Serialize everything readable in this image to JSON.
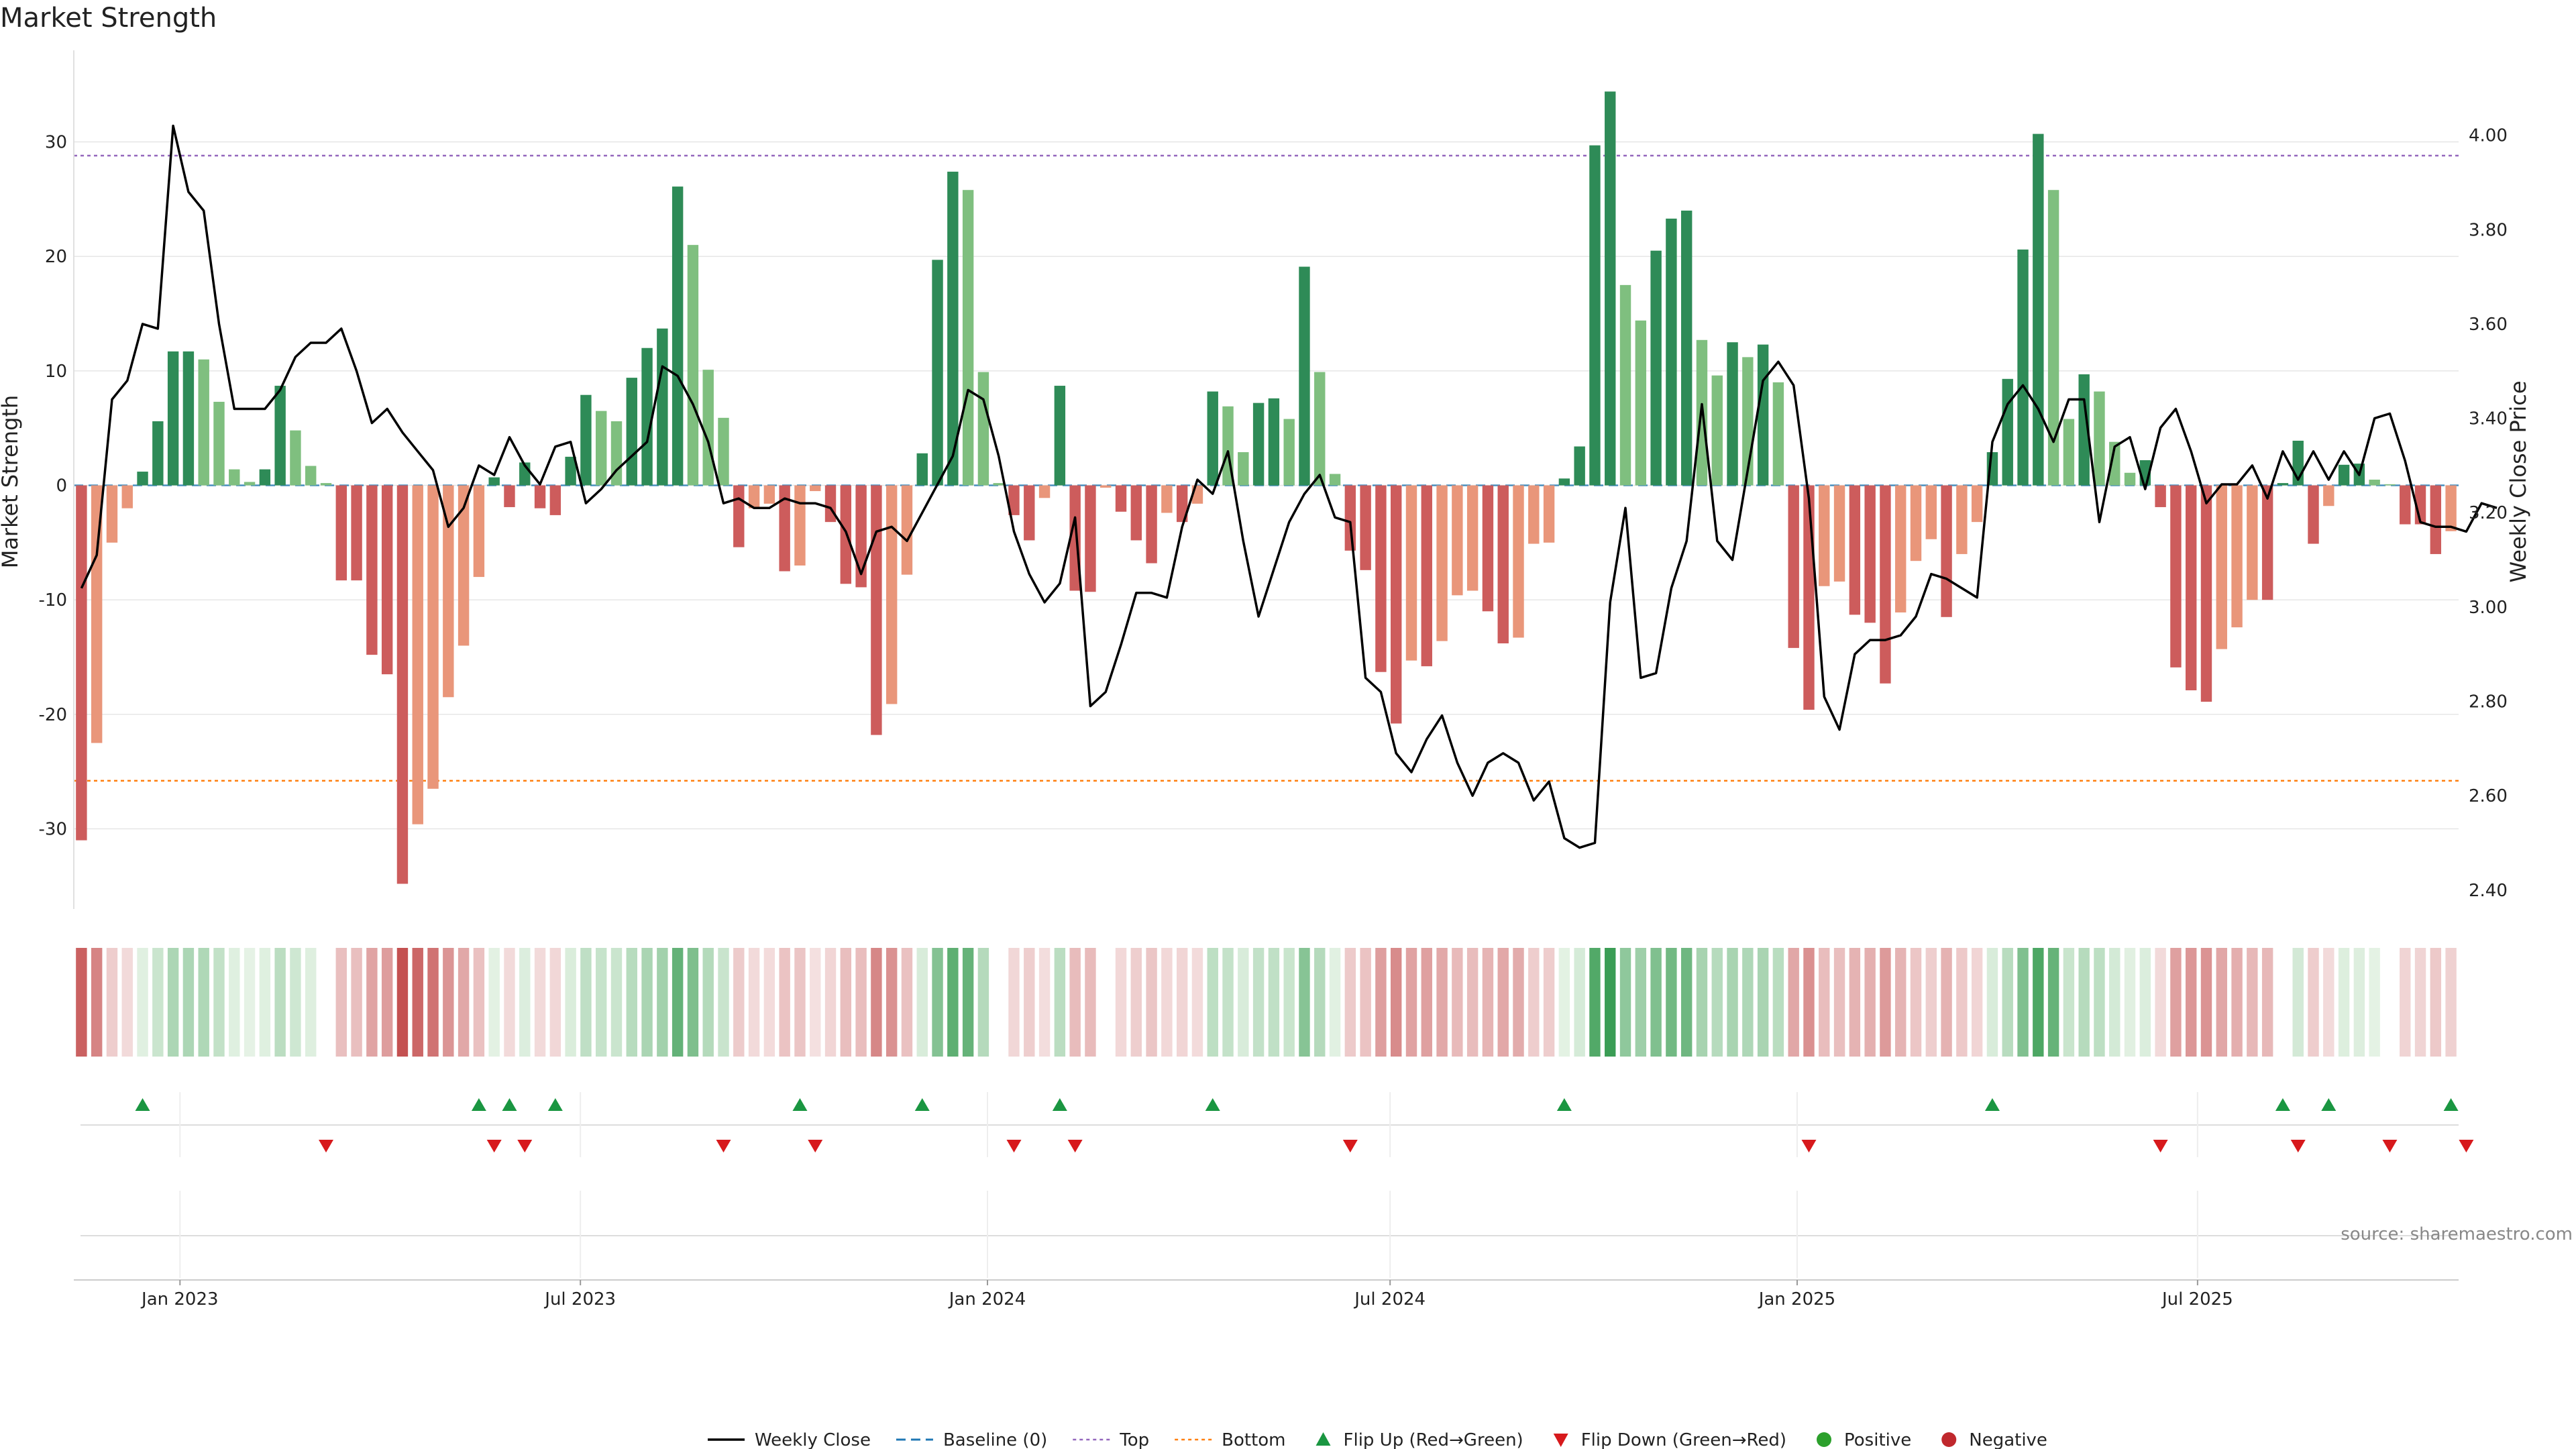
{
  "title": "Market Strength",
  "source_note": "source: sharemaestro.com",
  "colors": {
    "strong_green": "#2e8b57",
    "light_green": "#7fbf7f",
    "strong_red": "#cd5c5c",
    "light_red": "#e9967a",
    "price_line": "#000000",
    "baseline": "#1f77b4",
    "top_line": "#9467bd",
    "bottom_line": "#ff7f0e",
    "flip_up": "#1a9641",
    "flip_down": "#d7191c",
    "positive": "#2ca02c",
    "negative": "#c0282d",
    "grid": "#e6e6e6"
  },
  "legend": [
    {
      "label": "Weekly Close",
      "kind": "line",
      "color": "#000000"
    },
    {
      "label": "Baseline (0)",
      "kind": "dash",
      "color": "#1f77b4"
    },
    {
      "label": "Top",
      "kind": "dot",
      "color": "#9467bd"
    },
    {
      "label": "Bottom",
      "kind": "dot",
      "color": "#ff7f0e"
    },
    {
      "label": "Flip Up (Red→Green)",
      "kind": "tri-up",
      "color": "#1a9641"
    },
    {
      "label": "Flip Down (Green→Red)",
      "kind": "tri-down",
      "color": "#d7191c"
    },
    {
      "label": "Positive",
      "kind": "circle",
      "color": "#2ca02c"
    },
    {
      "label": "Negative",
      "kind": "circle",
      "color": "#c0282d"
    }
  ],
  "chart_data": {
    "type": "bar",
    "xlabel": "",
    "ylabel": "Market Strength",
    "y2label": "Weekly Close Price",
    "ylim": [
      -37,
      38
    ],
    "y2lim": [
      2.36,
      4.18
    ],
    "top_level": 28.8,
    "bottom_level": -25.8,
    "x_start": "2022-11-14",
    "x_end": "2025-10-27",
    "x_tick_labels": [
      "Jan 2023",
      "Jul 2023",
      "Jan 2024",
      "Jul 2024",
      "Jan 2025",
      "Jul 2025"
    ],
    "x_tick_dates": [
      "2023-01-01",
      "2023-07-01",
      "2024-01-01",
      "2024-07-01",
      "2025-01-01",
      "2025-07-01"
    ],
    "y_ticks": [
      -30,
      -20,
      -10,
      0,
      10,
      20,
      30
    ],
    "y2_ticks": [
      2.4,
      2.6,
      2.8,
      3.0,
      3.2,
      3.4,
      3.6,
      3.8,
      4.0
    ],
    "y2_tick_labels": [
      "2.40",
      "2.60",
      "2.80",
      "3.00",
      "3.20",
      "3.40",
      "3.60",
      "3.80",
      "4.00"
    ],
    "strength": [
      -31,
      -22.5,
      -5,
      -2,
      1.2,
      5.6,
      11.7,
      11.7,
      11,
      7.3,
      1.4,
      0.3,
      1.4,
      8.7,
      4.8,
      1.7,
      0.2,
      -8.3,
      -8.3,
      -14.8,
      -16.5,
      -34.8,
      -29.6,
      -26.5,
      -18.5,
      -14,
      -8,
      0.7,
      -1.9,
      2,
      -2,
      -2.6,
      2.5,
      7.9,
      6.5,
      5.6,
      9.4,
      12,
      13.7,
      26.1,
      21,
      10.1,
      5.9,
      -5.4,
      -2,
      -1.6,
      -7.5,
      -7,
      -0.5,
      -3.2,
      -8.6,
      -8.9,
      -21.8,
      -19.1,
      -7.8,
      2.8,
      19.7,
      27.4,
      25.8,
      9.9,
      0.2,
      -2.6,
      -4.8,
      -1.1,
      8.7,
      -9.2,
      -9.3,
      -0.2,
      -2.3,
      -4.8,
      -6.8,
      -2.4,
      -3.2,
      -1.6,
      8.2,
      6.9,
      2.9,
      7.2,
      7.6,
      5.8,
      19.1,
      9.9,
      1,
      -5.7,
      -7.4,
      -16.3,
      -20.8,
      -15.3,
      -15.8,
      -13.6,
      -9.6,
      -9.2,
      -11,
      -13.8,
      -13.3,
      -5.1,
      -5,
      0.6,
      3.4,
      29.7,
      34.4,
      17.5,
      14.4,
      20.5,
      23.3,
      24,
      12.7,
      9.6,
      12.5,
      11.2,
      12.3,
      9,
      -14.2,
      -19.6,
      -8.8,
      -8.4,
      -11.3,
      -12,
      -17.3,
      -11.1,
      -6.6,
      -4.7,
      -11.5,
      -6,
      -3.2,
      2.9,
      9.3,
      20.6,
      30.7,
      25.8,
      5.8,
      9.7,
      8.2,
      3.8,
      1.1,
      2.2,
      -1.9,
      -15.9,
      -17.9,
      -18.9,
      -14.3,
      -12.4,
      -10,
      -10,
      0.2,
      3.9,
      -5.1,
      -1.8,
      1.8,
      1.9,
      0.5,
      0.1,
      -3.4,
      -3.4,
      -6,
      -4
    ],
    "weekly_close": [
      3.04,
      3.11,
      3.44,
      3.48,
      3.6,
      3.59,
      4.02,
      3.88,
      3.84,
      3.6,
      3.42,
      3.42,
      3.42,
      3.46,
      3.53,
      3.56,
      3.56,
      3.59,
      3.5,
      3.39,
      3.42,
      3.37,
      3.33,
      3.29,
      3.17,
      3.21,
      3.3,
      3.28,
      3.36,
      3.3,
      3.26,
      3.34,
      3.35,
      3.22,
      3.25,
      3.29,
      3.32,
      3.35,
      3.51,
      3.49,
      3.43,
      3.35,
      3.22,
      3.23,
      3.21,
      3.21,
      3.23,
      3.22,
      3.22,
      3.21,
      3.16,
      3.07,
      3.16,
      3.17,
      3.14,
      3.2,
      3.26,
      3.32,
      3.46,
      3.44,
      3.32,
      3.16,
      3.07,
      3.01,
      3.05,
      3.19,
      2.79,
      2.82,
      2.92,
      3.03,
      3.03,
      3.02,
      3.17,
      3.27,
      3.24,
      3.33,
      3.14,
      2.98,
      3.08,
      3.18,
      3.24,
      3.28,
      3.19,
      3.18,
      2.85,
      2.82,
      2.69,
      2.65,
      2.72,
      2.77,
      2.67,
      2.6,
      2.67,
      2.69,
      2.67,
      2.59,
      2.63,
      2.51,
      2.49,
      2.5,
      3.01,
      3.21,
      2.85,
      2.86,
      3.04,
      3.14,
      3.43,
      3.14,
      3.1,
      3.29,
      3.48,
      3.52,
      3.47,
      3.23,
      2.81,
      2.74,
      2.9,
      2.93,
      2.93,
      2.94,
      2.98,
      3.07,
      3.06,
      3.04,
      3.02,
      3.35,
      3.43,
      3.47,
      3.42,
      3.35,
      3.44,
      3.44,
      3.18,
      3.34,
      3.36,
      3.25,
      3.38,
      3.42,
      3.33,
      3.22,
      3.26,
      3.26,
      3.3,
      3.23,
      3.33,
      3.27,
      3.33,
      3.27,
      3.33,
      3.28,
      3.4,
      3.41,
      3.31,
      3.18,
      3.17,
      3.17,
      3.16,
      3.22,
      3.21
    ],
    "flip_up_indices": [
      4,
      26,
      28,
      31,
      47,
      55,
      64,
      74,
      97,
      125,
      144,
      147,
      155
    ],
    "flip_down_indices": [
      16,
      27,
      29,
      42,
      48,
      61,
      65,
      83,
      113,
      136,
      145,
      151,
      156
    ],
    "series": [
      {
        "name": "Weekly Close",
        "type": "line"
      },
      {
        "name": "Baseline (0)",
        "type": "dashed-line"
      },
      {
        "name": "Top",
        "type": "dotted-line"
      },
      {
        "name": "Bottom",
        "type": "dotted-line"
      },
      {
        "name": "Flip Up (Red→Green)",
        "type": "marker"
      },
      {
        "name": "Flip Down (Green→Red)",
        "type": "marker"
      },
      {
        "name": "Positive",
        "type": "marker"
      },
      {
        "name": "Negative",
        "type": "marker"
      }
    ],
    "grid": true,
    "legend_position": "bottom-center"
  }
}
